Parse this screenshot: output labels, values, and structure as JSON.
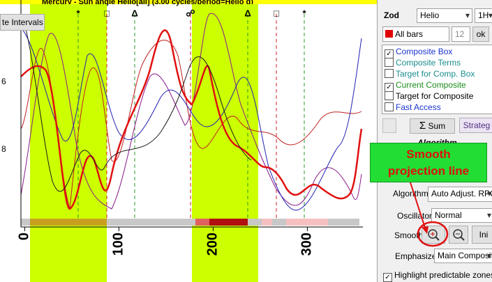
{
  "chart": {
    "title": "Mercury - Sun angle Helio[all] (3.00 cycles/period=Helio d)",
    "button": "te Intervals",
    "y_labels": [
      "6",
      "8"
    ],
    "xlim": [
      -4,
      360
    ],
    "xticks": [
      0,
      100,
      200,
      300
    ],
    "aspect_symbols": [
      "*",
      "□",
      "Δ",
      "☍",
      "Δ",
      "□",
      "*"
    ]
  },
  "panel": {
    "zod_label": "Zod",
    "zod_value": "Helio",
    "timeframe": "1H",
    "bars": "All bars",
    "bars_count": "12",
    "ok": "ok",
    "checks": [
      {
        "label": "Composite Box",
        "checked": true,
        "color": "#1a33cc"
      },
      {
        "label": "Composite Terms",
        "checked": false,
        "color": "#1a8c8c"
      },
      {
        "label": "Target for Comp. Box",
        "checked": false,
        "color": "#1a8c8c"
      },
      {
        "label": "Current Composite",
        "checked": true,
        "color": "#1a8c1a"
      },
      {
        "label": "Target for Composite",
        "checked": false,
        "color": "#000000"
      },
      {
        "label": "Fast Access",
        "checked": false,
        "color": "#1a33cc"
      }
    ],
    "sum": "Sum",
    "strategy": "Strateg",
    "algorithm_header": "Algorithm",
    "algorithm_label": "Algorithm",
    "algorithm_value": "Auto Adjust. RPC",
    "oscillator_label": "Oscillator",
    "oscillator_value": "Normal",
    "smooth_label": "Smooth",
    "init": "Ini",
    "emphasize_label": "Emphasize",
    "emphasize_value": "Main Composite",
    "highlight": "Highlight predictable zones"
  },
  "callout": [
    "Smooth",
    "projection line"
  ]
}
